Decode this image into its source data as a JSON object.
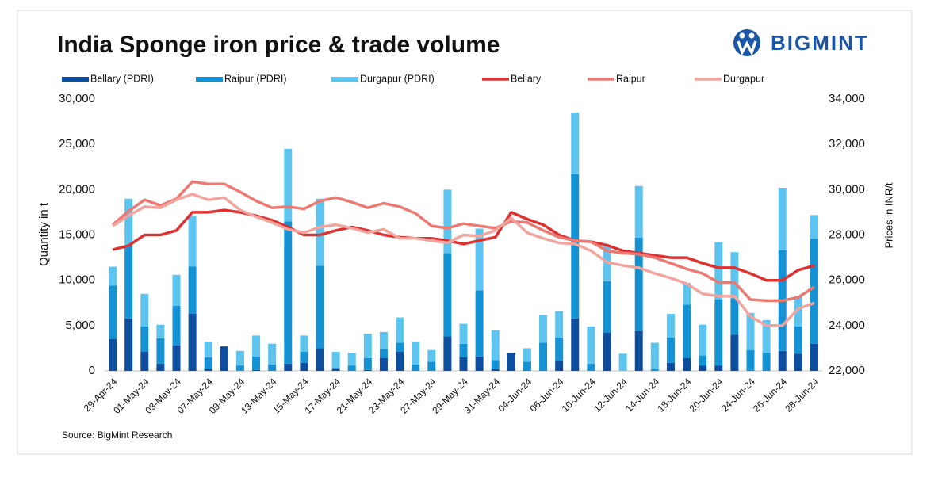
{
  "chart_data": {
    "type": "combo",
    "title": "India Sponge iron price & trade volume",
    "logo": "BIGMINT",
    "source": "Source: BigMint Research",
    "y_label": "Quantity in t",
    "y2_label": "Prices in INR/t",
    "categories": [
      "29-Apr-24",
      null,
      "01-May-24",
      null,
      "03-May-24",
      null,
      "07-May-24",
      null,
      "09-May-24",
      null,
      "13-May-24",
      null,
      "15-May-24",
      null,
      "17-May-24",
      null,
      "21-May-24",
      null,
      "23-May-24",
      null,
      "27-May-24",
      null,
      "29-May-24",
      null,
      "31-May-24",
      null,
      "04-Jun-24",
      null,
      "06-Jun-24",
      null,
      "10-Jun-24",
      null,
      "12-Jun-24",
      null,
      "14-Jun-24",
      null,
      "18-Jun-24",
      null,
      "20-Jun-24",
      null,
      "24-Jun-24",
      null,
      "26-Jun-24",
      null,
      "28-Jun-24"
    ],
    "ylim": [
      0,
      30000
    ],
    "yticks": [
      0,
      {
        "value": 5000,
        "label": "5,000"
      },
      {
        "value": 10000,
        "label": "10,000"
      },
      {
        "value": 15000,
        "label": "15,000"
      },
      {
        "value": 20000,
        "label": "20,000"
      },
      {
        "value": 25000,
        "label": "25,000"
      },
      {
        "value": 30000,
        "label": "30,000"
      }
    ],
    "y2lim": [
      22000,
      34000
    ],
    "y2ticks": [
      {
        "value": 22000,
        "label": "22,000"
      },
      {
        "value": 24000,
        "label": "24,000"
      },
      {
        "value": 26000,
        "label": "26,000"
      },
      {
        "value": 28000,
        "label": "28,000"
      },
      {
        "value": 30000,
        "label": "30,000"
      },
      {
        "value": 32000,
        "label": "32,000"
      },
      {
        "value": 34000,
        "label": "34,000"
      }
    ],
    "series": [
      {
        "name": "Bellary (PDRI)",
        "type": "bar",
        "color": "#0d4e9e",
        "values": [
          3500,
          5800,
          2100,
          800,
          2800,
          6300,
          200,
          2700,
          0,
          100,
          0,
          800,
          900,
          2500,
          300,
          0,
          100,
          1400,
          2100,
          0,
          0,
          3800,
          1500,
          1600,
          200,
          2000,
          0,
          0,
          1100,
          5800,
          0,
          4200,
          0,
          4400,
          0,
          900,
          1400,
          600,
          600,
          4000,
          0,
          0,
          2200,
          1900,
          3000
        ]
      },
      {
        "name": "Raipur (PDRI)",
        "type": "bar",
        "color": "#1592d4",
        "values": [
          5900,
          8000,
          2800,
          2800,
          4400,
          5200,
          1300,
          0,
          600,
          1500,
          700,
          15700,
          1200,
          9100,
          0,
          600,
          1300,
          1000,
          1000,
          700,
          1000,
          9200,
          1500,
          7300,
          1000,
          0,
          1000,
          3100,
          2600,
          15900,
          800,
          5700,
          0,
          10300,
          200,
          2800,
          5900,
          1100,
          7300,
          4000,
          2300,
          2000,
          11100,
          3000,
          11600
        ]
      },
      {
        "name": "Durgapur (PDRI)",
        "type": "bar",
        "color": "#5cc4ee",
        "values": [
          2100,
          5200,
          3600,
          1500,
          3400,
          5600,
          1700,
          0,
          1600,
          2300,
          2300,
          8000,
          1800,
          7400,
          1800,
          1400,
          2700,
          1900,
          2800,
          2500,
          1300,
          7000,
          2200,
          6800,
          3300,
          0,
          1500,
          3100,
          2900,
          6800,
          4100,
          3900,
          1900,
          5700,
          2900,
          2600,
          2400,
          3400,
          6300,
          5100,
          4100,
          3600,
          6900,
          3400,
          2600
        ]
      },
      {
        "name": "Bellary",
        "type": "line",
        "axis": "y2",
        "color": "#e03131",
        "values": [
          27350,
          27530,
          28000,
          28000,
          28200,
          29000,
          29000,
          29100,
          29000,
          28850,
          28650,
          28350,
          28000,
          28000,
          28200,
          28350,
          28200,
          28000,
          27900,
          27850,
          27850,
          27750,
          27600,
          27750,
          27900,
          29000,
          28700,
          28450,
          28000,
          27750,
          27700,
          27550,
          27300,
          27200,
          27100,
          27000,
          27000,
          26750,
          26550,
          26550,
          26300,
          26000,
          26000,
          26450,
          26650
        ]
      },
      {
        "name": "Raipur",
        "type": "line",
        "axis": "y2",
        "color": "#ec7a72",
        "values": [
          28450,
          29050,
          29550,
          29300,
          29600,
          30350,
          30250,
          30250,
          29900,
          29500,
          29200,
          29250,
          29150,
          29500,
          29650,
          29450,
          29200,
          29400,
          29250,
          28950,
          28400,
          28300,
          28500,
          28400,
          28300,
          28600,
          28550,
          28200,
          27900,
          27750,
          27700,
          27300,
          27200,
          27150,
          27000,
          26750,
          26500,
          26300,
          25900,
          25900,
          25150,
          25100,
          25100,
          25250,
          25700
        ]
      },
      {
        "name": "Durgapur",
        "type": "line",
        "axis": "y2",
        "color": "#f2a59f",
        "values": [
          28400,
          28850,
          29250,
          29200,
          29550,
          29800,
          29550,
          29650,
          29100,
          28800,
          28550,
          28250,
          28100,
          28350,
          28450,
          28300,
          28100,
          28250,
          27850,
          27850,
          27750,
          27650,
          28000,
          27950,
          28200,
          28750,
          28100,
          27850,
          27650,
          27600,
          27300,
          26800,
          26650,
          26550,
          26300,
          26100,
          25850,
          25400,
          25300,
          25300,
          24400,
          24000,
          24000,
          24750,
          25000
        ]
      }
    ]
  }
}
